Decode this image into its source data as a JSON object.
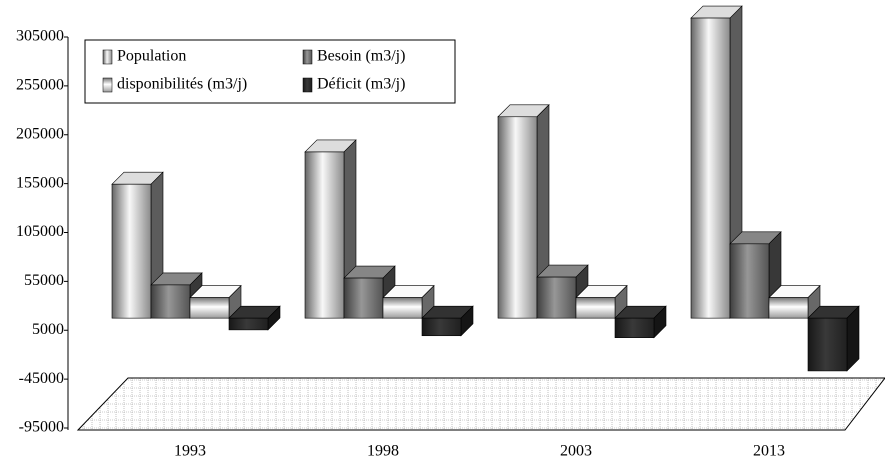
{
  "chart_data": {
    "type": "bar3d",
    "categories": [
      "1993",
      "1998",
      "2003",
      "2013"
    ],
    "series": [
      {
        "name": "Population",
        "color": "#b8b8b8",
        "values": [
          137000,
          170000,
          206000,
          307000
        ]
      },
      {
        "name": "Besoin (m3/j)",
        "color": "#707070",
        "values": [
          34000,
          41000,
          42000,
          76000
        ]
      },
      {
        "name": "disponibilités (m3/j)",
        "color": "#d0d0d0",
        "values": [
          21000,
          21000,
          21000,
          21000
        ]
      },
      {
        "name": "Déficit (m3/j)",
        "color": "#2a2a2a",
        "values": [
          -12000,
          -18000,
          -20000,
          -54000
        ]
      }
    ],
    "ylim": [
      -95000,
      305000
    ],
    "yticks": [
      305000,
      255000,
      205000,
      155000,
      105000,
      55000,
      5000,
      -45000,
      -95000
    ],
    "legend": "top-left"
  }
}
